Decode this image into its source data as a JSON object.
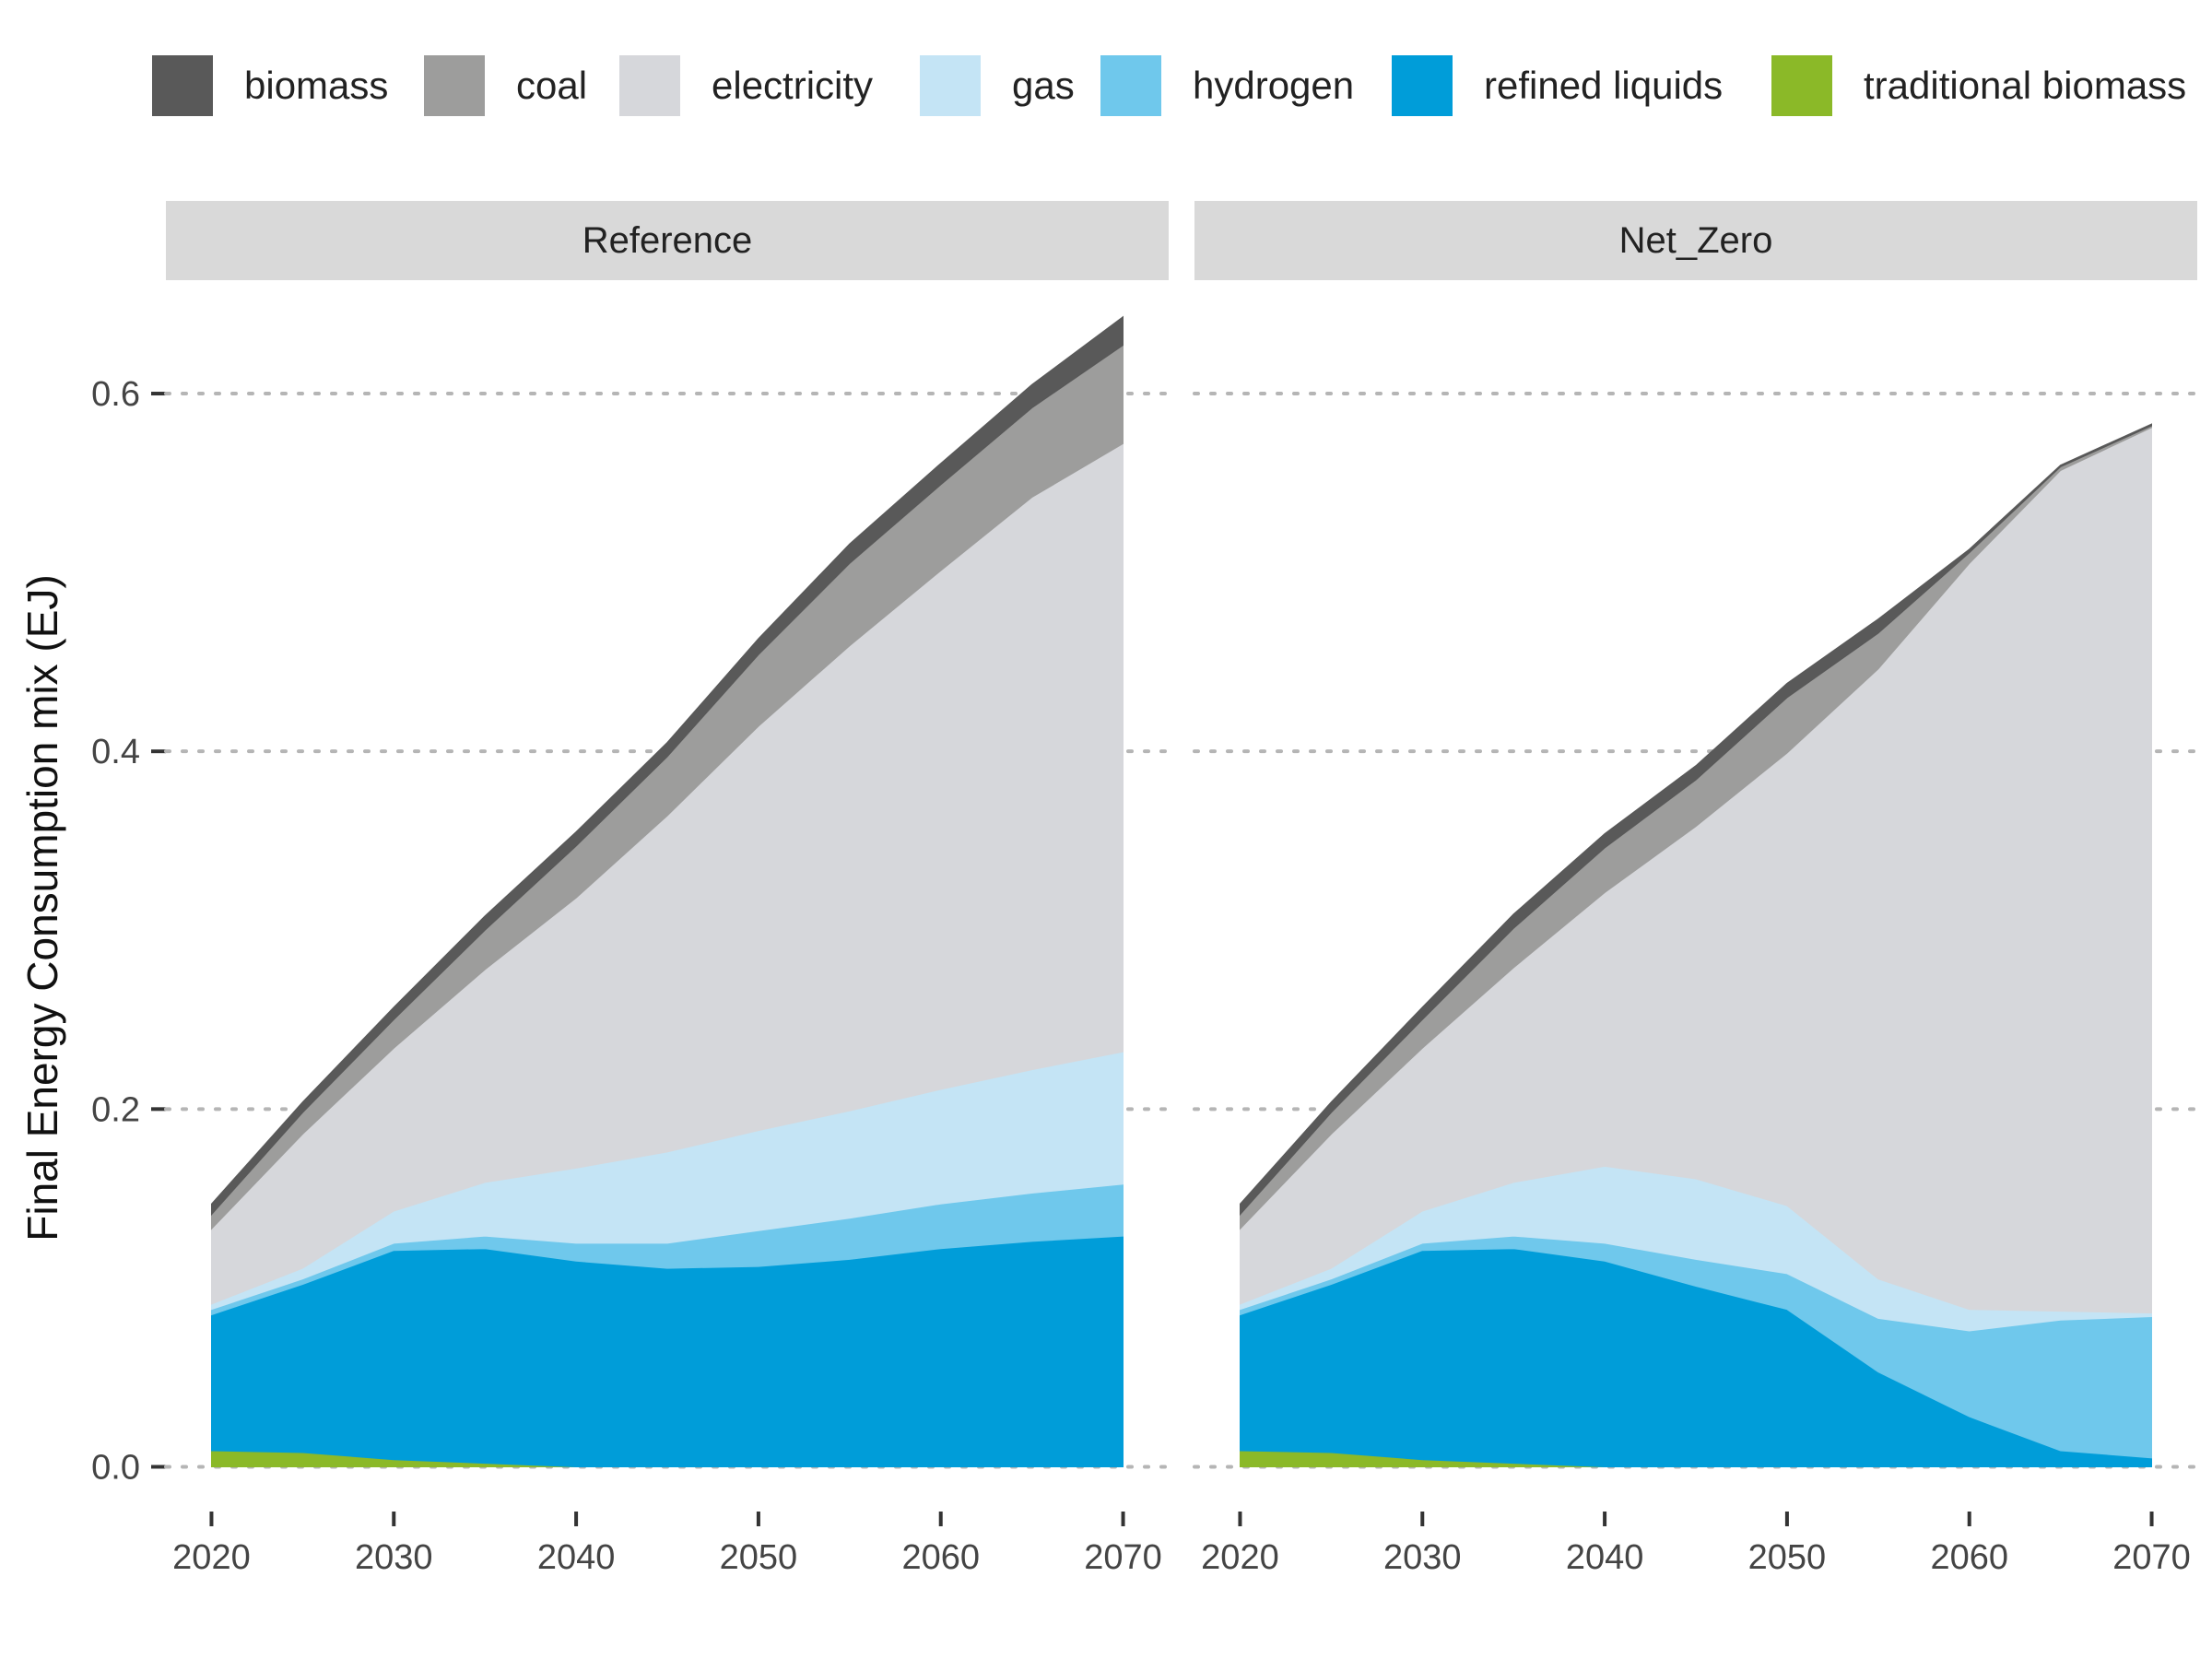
{
  "chart_data": {
    "type": "area",
    "stacked": true,
    "ylabel": "Final Energy Consumption mix (EJ)",
    "xlabel": "",
    "ylim": [
      -0.025,
      0.65
    ],
    "yticks": [
      0.0,
      0.2,
      0.4,
      0.6
    ],
    "ytick_labels": [
      "0.0",
      "0.2",
      "0.4",
      "0.6"
    ],
    "xlim": [
      2017.5,
      2072.5
    ],
    "xticks": [
      2020,
      2030,
      2040,
      2050,
      2060,
      2070
    ],
    "xtick_labels": [
      "2020",
      "2030",
      "2040",
      "2050",
      "2060",
      "2070"
    ],
    "grid": "horizontal-dotted",
    "legend_position": "top",
    "legend": [
      {
        "name": "biomass",
        "color": "#595959"
      },
      {
        "name": "coal",
        "color": "#9d9d9c"
      },
      {
        "name": "electricity",
        "color": "#d6d7db"
      },
      {
        "name": "gas",
        "color": "#c4e4f5"
      },
      {
        "name": "hydrogen",
        "color": "#6fc8ec"
      },
      {
        "name": "refined liquids",
        "color": "#009dd9"
      },
      {
        "name": "traditional biomass",
        "color": "#8bb928"
      }
    ],
    "stack_order": [
      "traditional biomass",
      "refined liquids",
      "hydrogen",
      "gas",
      "electricity",
      "coal",
      "biomass"
    ],
    "x": [
      2020,
      2025,
      2030,
      2035,
      2040,
      2045,
      2050,
      2055,
      2060,
      2065,
      2070
    ],
    "panels": [
      {
        "name": "Reference",
        "series": [
          {
            "name": "traditional biomass",
            "values": [
              0.009,
              0.008,
              0.004,
              0.002,
              0,
              0,
              0,
              0,
              0,
              0,
              0
            ]
          },
          {
            "name": "refined liquids",
            "values": [
              0.076,
              0.094,
              0.117,
              0.12,
              0.115,
              0.111,
              0.112,
              0.116,
              0.122,
              0.126,
              0.129
            ]
          },
          {
            "name": "hydrogen",
            "values": [
              0.003,
              0.003,
              0.004,
              0.007,
              0.01,
              0.014,
              0.02,
              0.023,
              0.025,
              0.027,
              0.029
            ]
          },
          {
            "name": "gas",
            "values": [
              0.003,
              0.006,
              0.018,
              0.03,
              0.042,
              0.051,
              0.056,
              0.06,
              0.064,
              0.069,
              0.074
            ]
          },
          {
            "name": "electricity",
            "values": [
              0.042,
              0.075,
              0.091,
              0.119,
              0.151,
              0.188,
              0.226,
              0.26,
              0.29,
              0.32,
              0.34
            ]
          },
          {
            "name": "coal",
            "values": [
              0.008,
              0.012,
              0.016,
              0.022,
              0.029,
              0.033,
              0.04,
              0.046,
              0.048,
              0.05,
              0.055
            ]
          },
          {
            "name": "biomass",
            "values": [
              0.006,
              0.006,
              0.007,
              0.008,
              0.008,
              0.008,
              0.009,
              0.011,
              0.012,
              0.013,
              0.016
            ]
          }
        ]
      },
      {
        "name": "Net_Zero",
        "series": [
          {
            "name": "traditional biomass",
            "values": [
              0.009,
              0.008,
              0.004,
              0.002,
              0,
              0,
              0,
              0,
              0,
              0,
              0
            ]
          },
          {
            "name": "refined liquids",
            "values": [
              0.076,
              0.094,
              0.117,
              0.12,
              0.115,
              0.101,
              0.088,
              0.053,
              0.028,
              0.009,
              0.005
            ]
          },
          {
            "name": "hydrogen",
            "values": [
              0.003,
              0.003,
              0.004,
              0.007,
              0.01,
              0.015,
              0.02,
              0.03,
              0.048,
              0.073,
              0.079
            ]
          },
          {
            "name": "gas",
            "values": [
              0.003,
              0.006,
              0.018,
              0.03,
              0.043,
              0.045,
              0.038,
              0.022,
              0.012,
              0.005,
              0.002
            ]
          },
          {
            "name": "electricity",
            "values": [
              0.042,
              0.075,
              0.091,
              0.12,
              0.153,
              0.197,
              0.253,
              0.341,
              0.417,
              0.47,
              0.495
            ]
          },
          {
            "name": "coal",
            "values": [
              0.008,
              0.012,
              0.016,
              0.022,
              0.025,
              0.026,
              0.031,
              0.02,
              0.006,
              0.002,
              0.001
            ]
          },
          {
            "name": "biomass",
            "values": [
              0.006,
              0.006,
              0.007,
              0.008,
              0.008,
              0.008,
              0.008,
              0.008,
              0.002,
              0.001,
              0.001
            ]
          }
        ]
      }
    ]
  }
}
